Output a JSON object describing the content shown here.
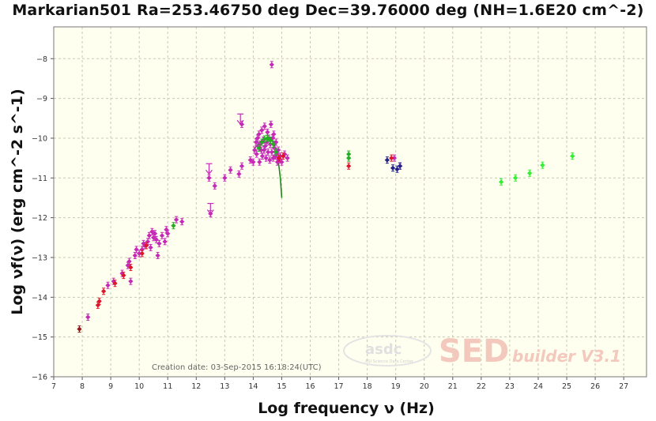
{
  "chart_data": {
    "type": "scatter",
    "title": "Markarian501 Ra=253.46750 deg Dec=39.76000 deg (NH=1.6E20 cm^-2)",
    "xlabel": "Log frequency ν (Hz)",
    "ylabel": "Log νf(ν) (erg cm^-2 s^-1)",
    "xlim": [
      7,
      27.8
    ],
    "ylim": [
      -16,
      -7.2
    ],
    "xticks": [
      7,
      8,
      9,
      10,
      11,
      12,
      13,
      14,
      15,
      16,
      17,
      18,
      19,
      20,
      21,
      22,
      23,
      24,
      25,
      26,
      27
    ],
    "yticks": [
      -16,
      -15,
      -14,
      -13,
      -12,
      -11,
      -10,
      -9,
      -8
    ],
    "grid": true,
    "creation_date": "Creation date: 03-Sep-2015 16:18:24(UTC)",
    "watermark": {
      "asdc": "asdc",
      "asdc_sub": "ASI Science Data Center",
      "sed": "SED",
      "builder": "builder V3.1"
    },
    "colors": {
      "background": "#fffff0",
      "grid": "#c8c8b4"
    },
    "series": [
      {
        "color": "#c42ab6",
        "points": [
          [
            8.2,
            -14.5
          ],
          [
            8.9,
            -13.7
          ],
          [
            9.1,
            -13.6
          ],
          [
            9.4,
            -13.4
          ],
          [
            9.6,
            -13.2
          ],
          [
            9.65,
            -13.1
          ],
          [
            9.7,
            -13.6
          ],
          [
            9.85,
            -12.95
          ],
          [
            9.9,
            -12.8
          ],
          [
            10.0,
            -12.9
          ],
          [
            10.1,
            -12.8
          ],
          [
            10.15,
            -12.65
          ],
          [
            10.2,
            -12.7
          ],
          [
            10.3,
            -12.6
          ],
          [
            10.35,
            -12.45
          ],
          [
            10.4,
            -12.75
          ],
          [
            10.45,
            -12.35
          ],
          [
            10.5,
            -12.5
          ],
          [
            10.55,
            -12.4
          ],
          [
            10.6,
            -12.55
          ],
          [
            10.65,
            -12.95
          ],
          [
            10.7,
            -12.65
          ],
          [
            10.8,
            -12.45
          ],
          [
            10.9,
            -12.6
          ],
          [
            10.95,
            -12.3
          ],
          [
            11.0,
            -12.4
          ],
          [
            11.3,
            -12.05
          ],
          [
            11.5,
            -12.1
          ],
          [
            12.45,
            -11.0
          ],
          [
            12.5,
            -11.9
          ],
          [
            12.65,
            -11.2
          ],
          [
            13.0,
            -11.0
          ],
          [
            13.2,
            -10.8
          ],
          [
            13.5,
            -10.9
          ],
          [
            13.6,
            -10.7
          ],
          [
            13.6,
            -9.65
          ],
          [
            13.9,
            -10.55
          ],
          [
            14.0,
            -10.6
          ],
          [
            14.05,
            -10.3
          ],
          [
            14.1,
            -10.1
          ],
          [
            14.12,
            -10.4
          ],
          [
            14.15,
            -10.0
          ],
          [
            14.18,
            -10.2
          ],
          [
            14.2,
            -9.9
          ],
          [
            14.22,
            -10.6
          ],
          [
            14.25,
            -10.15
          ],
          [
            14.28,
            -10.3
          ],
          [
            14.3,
            -9.8
          ],
          [
            14.32,
            -10.45
          ],
          [
            14.35,
            -10.05
          ],
          [
            14.38,
            -10.3
          ],
          [
            14.4,
            -9.7
          ],
          [
            14.42,
            -10.2
          ],
          [
            14.45,
            -10.5
          ],
          [
            14.48,
            -10.1
          ],
          [
            14.5,
            -9.85
          ],
          [
            14.52,
            -10.35
          ],
          [
            14.55,
            -10.0
          ],
          [
            14.58,
            -10.55
          ],
          [
            14.6,
            -10.15
          ],
          [
            14.62,
            -9.65
          ],
          [
            14.65,
            -10.35
          ],
          [
            14.68,
            -10.0
          ],
          [
            14.7,
            -10.5
          ],
          [
            14.72,
            -9.9
          ],
          [
            14.75,
            -10.25
          ],
          [
            14.78,
            -10.45
          ],
          [
            14.8,
            -10.1
          ],
          [
            14.82,
            -10.4
          ],
          [
            14.85,
            -10.6
          ],
          [
            14.88,
            -10.3
          ],
          [
            14.9,
            -10.55
          ],
          [
            14.95,
            -10.45
          ],
          [
            15.0,
            -10.6
          ],
          [
            15.1,
            -10.4
          ],
          [
            15.2,
            -10.5
          ],
          [
            14.65,
            -8.15
          ],
          [
            18.95,
            -10.5
          ],
          [
            19.15,
            -10.7
          ]
        ]
      },
      {
        "color": "#e0142a",
        "points": [
          [
            8.55,
            -14.2
          ],
          [
            8.6,
            -14.1
          ],
          [
            8.75,
            -13.85
          ],
          [
            9.15,
            -13.65
          ],
          [
            9.45,
            -13.45
          ],
          [
            9.7,
            -13.25
          ],
          [
            10.1,
            -12.9
          ],
          [
            10.25,
            -12.7
          ],
          [
            14.9,
            -10.5
          ],
          [
            15.05,
            -10.45
          ],
          [
            17.35,
            -10.7
          ],
          [
            18.85,
            -10.5
          ]
        ]
      },
      {
        "color": "#8b1a1a",
        "points": [
          [
            7.9,
            -14.8
          ]
        ]
      },
      {
        "color": "#22b022",
        "points": [
          [
            11.2,
            -12.2
          ],
          [
            14.2,
            -10.25
          ],
          [
            14.3,
            -10.1
          ],
          [
            14.4,
            -10.02
          ],
          [
            14.5,
            -10.0
          ],
          [
            14.6,
            -10.05
          ],
          [
            14.7,
            -10.15
          ],
          [
            14.8,
            -10.35
          ],
          [
            17.35,
            -10.4
          ],
          [
            17.35,
            -10.5
          ]
        ]
      },
      {
        "color": "#33ee33",
        "points": [
          [
            22.7,
            -11.1
          ],
          [
            23.2,
            -11.0
          ],
          [
            23.7,
            -10.88
          ],
          [
            24.15,
            -10.68
          ],
          [
            25.2,
            -10.45
          ]
        ]
      },
      {
        "color": "#222288",
        "points": [
          [
            18.7,
            -10.55
          ],
          [
            18.9,
            -10.75
          ],
          [
            19.05,
            -10.78
          ],
          [
            19.15,
            -10.7
          ]
        ]
      }
    ],
    "upper_limits": {
      "color": "#c42ab6",
      "points": [
        [
          12.45,
          -10.8
        ],
        [
          12.5,
          -11.8
        ],
        [
          13.55,
          -9.55
        ]
      ]
    },
    "model_curve": {
      "color": "#1a8a1a",
      "points": [
        [
          14.0,
          -10.3
        ],
        [
          14.2,
          -10.12
        ],
        [
          14.4,
          -10.02
        ],
        [
          14.55,
          -10.0
        ],
        [
          14.7,
          -10.1
        ],
        [
          14.8,
          -10.3
        ],
        [
          14.9,
          -10.7
        ],
        [
          14.95,
          -11.0
        ],
        [
          15.0,
          -11.5
        ]
      ]
    }
  }
}
